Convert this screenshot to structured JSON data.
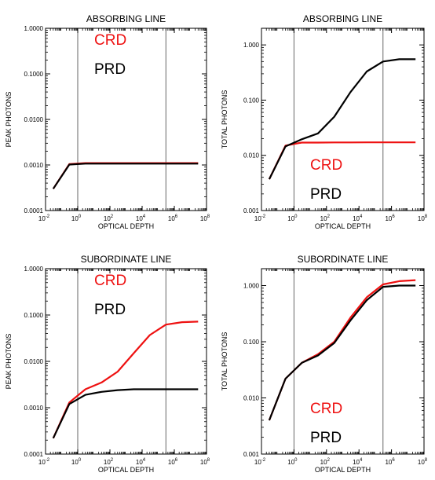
{
  "colors": {
    "crd": "#ee1111",
    "prd": "#000000",
    "axis": "#000000",
    "vline": "#666666"
  },
  "chart_data": [
    {
      "type": "line",
      "title": "ABSORBING LINE",
      "xlabel": "OPTICAL DEPTH",
      "ylabel": "PEAK PHOTONS",
      "xscale": "log",
      "yscale": "log",
      "xlim": [
        0.01,
        100000000
      ],
      "ylim": [
        0.0001,
        1
      ],
      "xticks": [
        {
          "base": "10",
          "exp": "-2"
        },
        {
          "base": "10",
          "exp": "0"
        },
        {
          "base": "10",
          "exp": "2"
        },
        {
          "base": "10",
          "exp": "4"
        },
        {
          "base": "10",
          "exp": "6"
        },
        {
          "base": "10",
          "exp": "8"
        }
      ],
      "yticks": [
        "0.0001",
        "0.0010",
        "0.0100",
        "0.1000",
        "1.0000"
      ],
      "vlines": [
        1,
        300000
      ],
      "legend": [
        "CRD",
        "PRD"
      ],
      "legend_position": "top",
      "series": [
        {
          "name": "CRD",
          "x": [
            0.03,
            0.3,
            3,
            30,
            300,
            3000,
            30000,
            300000,
            3000000,
            30000000
          ],
          "y": [
            0.0003,
            0.00105,
            0.0011,
            0.0011,
            0.0011,
            0.0011,
            0.0011,
            0.0011,
            0.0011,
            0.0011
          ]
        },
        {
          "name": "PRD",
          "x": [
            0.03,
            0.3,
            3,
            30,
            300,
            3000,
            30000,
            300000,
            3000000,
            30000000
          ],
          "y": [
            0.0003,
            0.00102,
            0.00107,
            0.00107,
            0.00107,
            0.00107,
            0.00107,
            0.00107,
            0.00107,
            0.00107
          ]
        }
      ]
    },
    {
      "type": "line",
      "title": "ABSORBING LINE",
      "xlabel": "OPTICAL DEPTH",
      "ylabel": "TOTAL PHOTONS",
      "xscale": "log",
      "yscale": "log",
      "xlim": [
        0.01,
        100000000
      ],
      "ylim": [
        0.001,
        2
      ],
      "xticks": [
        {
          "base": "10",
          "exp": "-2"
        },
        {
          "base": "10",
          "exp": "0"
        },
        {
          "base": "10",
          "exp": "2"
        },
        {
          "base": "10",
          "exp": "4"
        },
        {
          "base": "10",
          "exp": "6"
        },
        {
          "base": "10",
          "exp": "8"
        }
      ],
      "yticks": [
        "0.001",
        "0.010",
        "0.100",
        "1.000"
      ],
      "vlines": [
        1,
        300000
      ],
      "legend": [
        "CRD",
        "PRD"
      ],
      "legend_position": "bottom",
      "series": [
        {
          "name": "CRD",
          "x": [
            0.03,
            0.3,
            3,
            30,
            300,
            3000,
            30000,
            300000,
            3000000,
            30000000
          ],
          "y": [
            0.0037,
            0.015,
            0.017,
            0.017,
            0.0171,
            0.0171,
            0.0172,
            0.0172,
            0.0172,
            0.0172
          ]
        },
        {
          "name": "PRD",
          "x": [
            0.03,
            0.3,
            3,
            30,
            300,
            3000,
            30000,
            300000,
            3000000,
            30000000
          ],
          "y": [
            0.0037,
            0.0145,
            0.0195,
            0.025,
            0.05,
            0.14,
            0.33,
            0.5,
            0.55,
            0.55
          ]
        }
      ]
    },
    {
      "type": "line",
      "title": "SUBORDINATE LINE",
      "xlabel": "OPTICAL DEPTH",
      "ylabel": "PEAK PHOTONS",
      "xscale": "log",
      "yscale": "log",
      "xlim": [
        0.01,
        100000000
      ],
      "ylim": [
        0.0001,
        1
      ],
      "xticks": [
        {
          "base": "10",
          "exp": "-2"
        },
        {
          "base": "10",
          "exp": "0"
        },
        {
          "base": "10",
          "exp": "2"
        },
        {
          "base": "10",
          "exp": "4"
        },
        {
          "base": "10",
          "exp": "6"
        },
        {
          "base": "10",
          "exp": "8"
        }
      ],
      "yticks": [
        "0.0001",
        "0.0010",
        "0.0100",
        "0.1000",
        "1.0000"
      ],
      "vlines": [
        1,
        300000
      ],
      "legend": [
        "CRD",
        "PRD"
      ],
      "legend_position": "top",
      "series": [
        {
          "name": "CRD",
          "x": [
            0.03,
            0.3,
            3,
            30,
            300,
            3000,
            30000,
            300000,
            3000000,
            30000000
          ],
          "y": [
            0.00022,
            0.0013,
            0.0025,
            0.0035,
            0.006,
            0.015,
            0.037,
            0.062,
            0.07,
            0.072
          ]
        },
        {
          "name": "PRD",
          "x": [
            0.03,
            0.3,
            3,
            30,
            300,
            3000,
            30000,
            300000,
            3000000,
            30000000
          ],
          "y": [
            0.00022,
            0.0012,
            0.0019,
            0.0022,
            0.0024,
            0.0025,
            0.0025,
            0.0025,
            0.0025,
            0.0025
          ]
        }
      ]
    },
    {
      "type": "line",
      "title": "SUBORDINATE LINE",
      "xlabel": "OPTICAL DEPTH",
      "ylabel": "TOTAL PHOTONS",
      "xscale": "log",
      "yscale": "log",
      "xlim": [
        0.01,
        100000000
      ],
      "ylim": [
        0.001,
        2
      ],
      "xticks": [
        {
          "base": "10",
          "exp": "-2"
        },
        {
          "base": "10",
          "exp": "0"
        },
        {
          "base": "10",
          "exp": "2"
        },
        {
          "base": "10",
          "exp": "4"
        },
        {
          "base": "10",
          "exp": "6"
        },
        {
          "base": "10",
          "exp": "8"
        }
      ],
      "yticks": [
        "0.001",
        "0.010",
        "0.100",
        "1.000"
      ],
      "vlines": [
        1,
        300000
      ],
      "legend": [
        "CRD",
        "PRD"
      ],
      "legend_position": "bottom",
      "series": [
        {
          "name": "CRD",
          "x": [
            0.03,
            0.3,
            3,
            30,
            300,
            3000,
            30000,
            300000,
            3000000,
            30000000
          ],
          "y": [
            0.004,
            0.022,
            0.042,
            0.06,
            0.1,
            0.27,
            0.62,
            1.05,
            1.2,
            1.25
          ]
        },
        {
          "name": "PRD",
          "x": [
            0.03,
            0.3,
            3,
            30,
            300,
            3000,
            30000,
            300000,
            3000000,
            30000000
          ],
          "y": [
            0.004,
            0.022,
            0.042,
            0.057,
            0.095,
            0.24,
            0.55,
            0.95,
            1.0,
            1.0
          ]
        }
      ]
    }
  ]
}
